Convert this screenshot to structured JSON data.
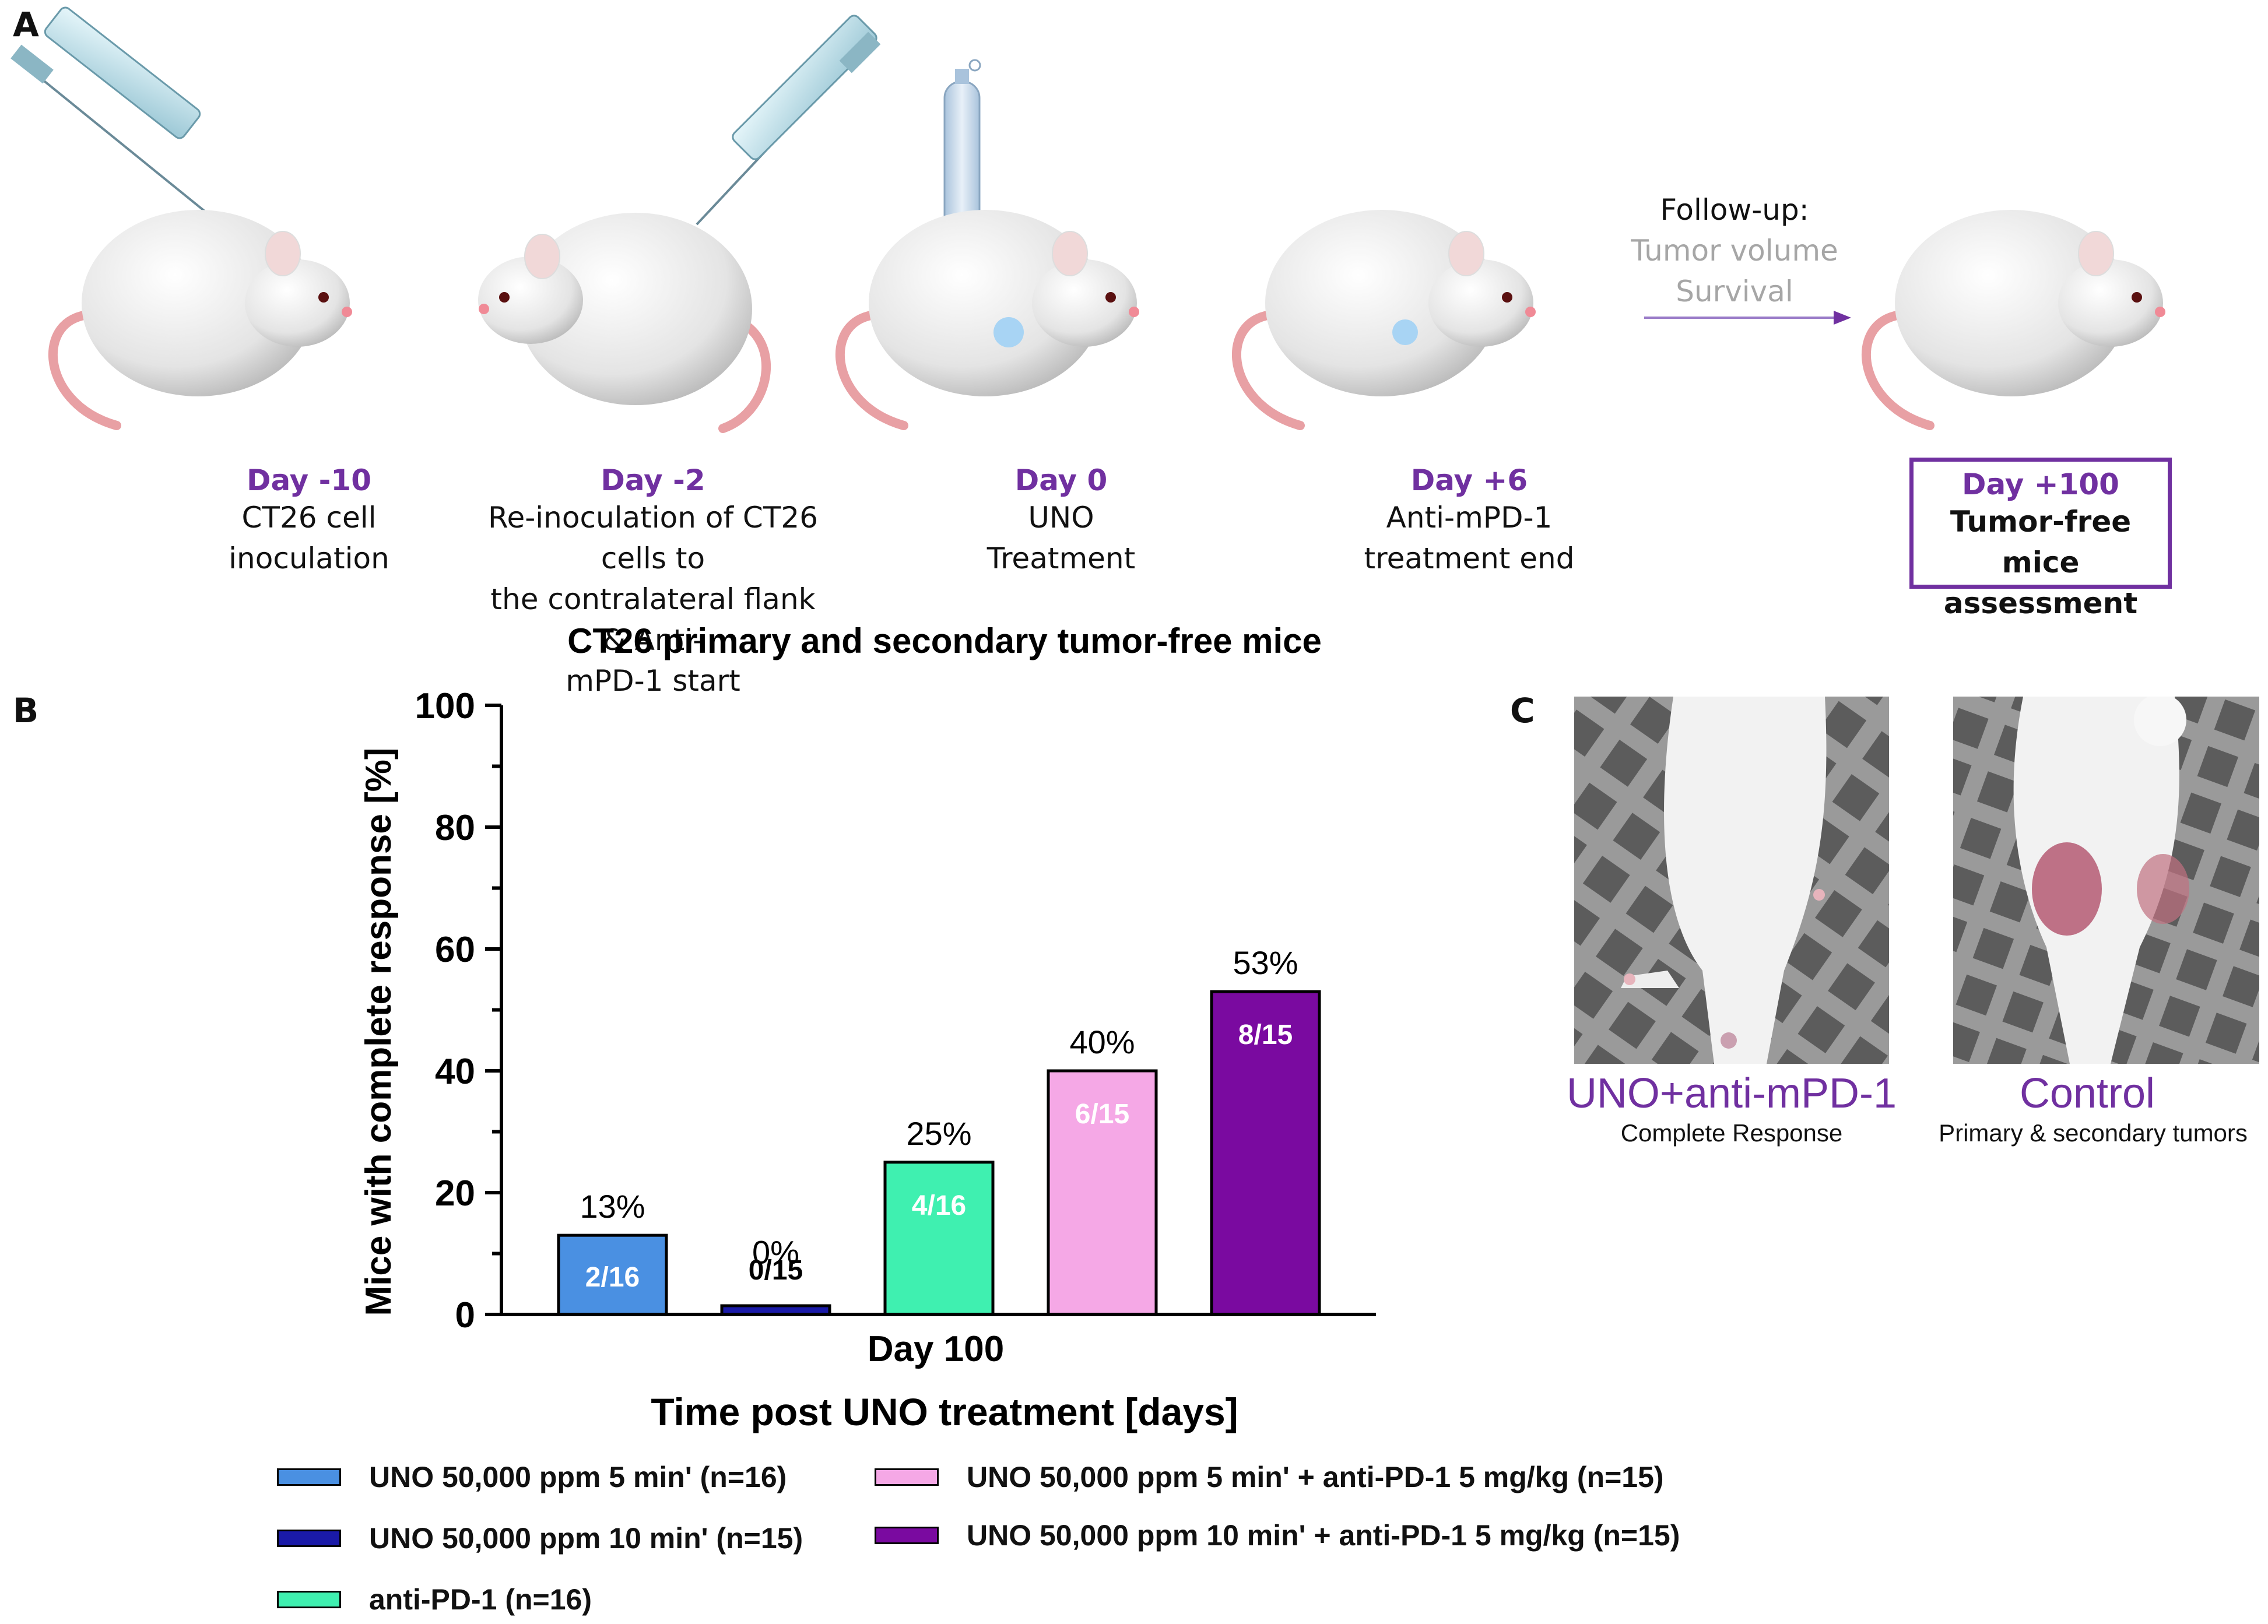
{
  "panel_a": {
    "letter": "A",
    "steps": [
      {
        "day": "Day -10",
        "text": "CT26 cell\ninoculation"
      },
      {
        "day": "Day -2",
        "text": "Re-inoculation of CT26 cells to\nthe contralateral flank & Anti-\nmPD-1 start"
      },
      {
        "day": "Day 0",
        "text": "UNO\nTreatment"
      },
      {
        "day": "Day +6",
        "text": "Anti-mPD-1\ntreatment end"
      },
      {
        "day": "Day +100",
        "text": "Tumor-free mice\nassessment"
      }
    ],
    "followup": {
      "title": "Follow-up:",
      "line1": "Tumor volume",
      "line2": "Survival"
    }
  },
  "panel_b": {
    "letter": "B"
  },
  "panel_c": {
    "letter": "C",
    "photos": [
      {
        "label": "UNO+anti-mPD-1",
        "sublabel": "Complete Response"
      },
      {
        "label": "Control",
        "sublabel": "Primary & secondary tumors"
      }
    ]
  },
  "colors": {
    "accent": "#7030a0",
    "bar1": "#4a90e2",
    "bar2": "#1a1aa8",
    "bar3": "#3ff0b0",
    "bar4": "#f5a8e6",
    "bar5": "#7a0aa0"
  },
  "chart_data": {
    "type": "bar",
    "title": "CT26 primary and secondary tumor-free mice",
    "xlabel": "Time post UNO treatment [days]",
    "ylabel": "Mice with complete response [%]",
    "x_group_label": "Day 100",
    "ylim": [
      0,
      100
    ],
    "yticks": [
      0,
      20,
      40,
      60,
      80,
      100
    ],
    "series": [
      {
        "name": "UNO 50,000 ppm 5 min' (n=16)",
        "value": 13,
        "value_label": "13%",
        "count_label": "2/16",
        "color": "#4a90e2",
        "count_color": "#ffffff"
      },
      {
        "name": "UNO 50,000 ppm 10 min' (n=15)",
        "value": 0,
        "value_label": "0%",
        "count_label": "0/15",
        "color": "#1a1aa8",
        "count_color": "#000000"
      },
      {
        "name": "anti-PD-1 (n=16)",
        "value": 25,
        "value_label": "25%",
        "count_label": "4/16",
        "color": "#3ff0b0",
        "count_color": "#ffffff"
      },
      {
        "name": "UNO 50,000 ppm 5 min' + anti-PD-1 5 mg/kg (n=15)",
        "value": 40,
        "value_label": "40%",
        "count_label": "6/15",
        "color": "#f5a8e6",
        "count_color": "#ffffff"
      },
      {
        "name": "UNO 50,000 ppm 10 min' + anti-PD-1 5 mg/kg (n=15)",
        "value": 53,
        "value_label": "53%",
        "count_label": "8/15",
        "color": "#7a0aa0",
        "count_color": "#ffffff"
      }
    ]
  }
}
